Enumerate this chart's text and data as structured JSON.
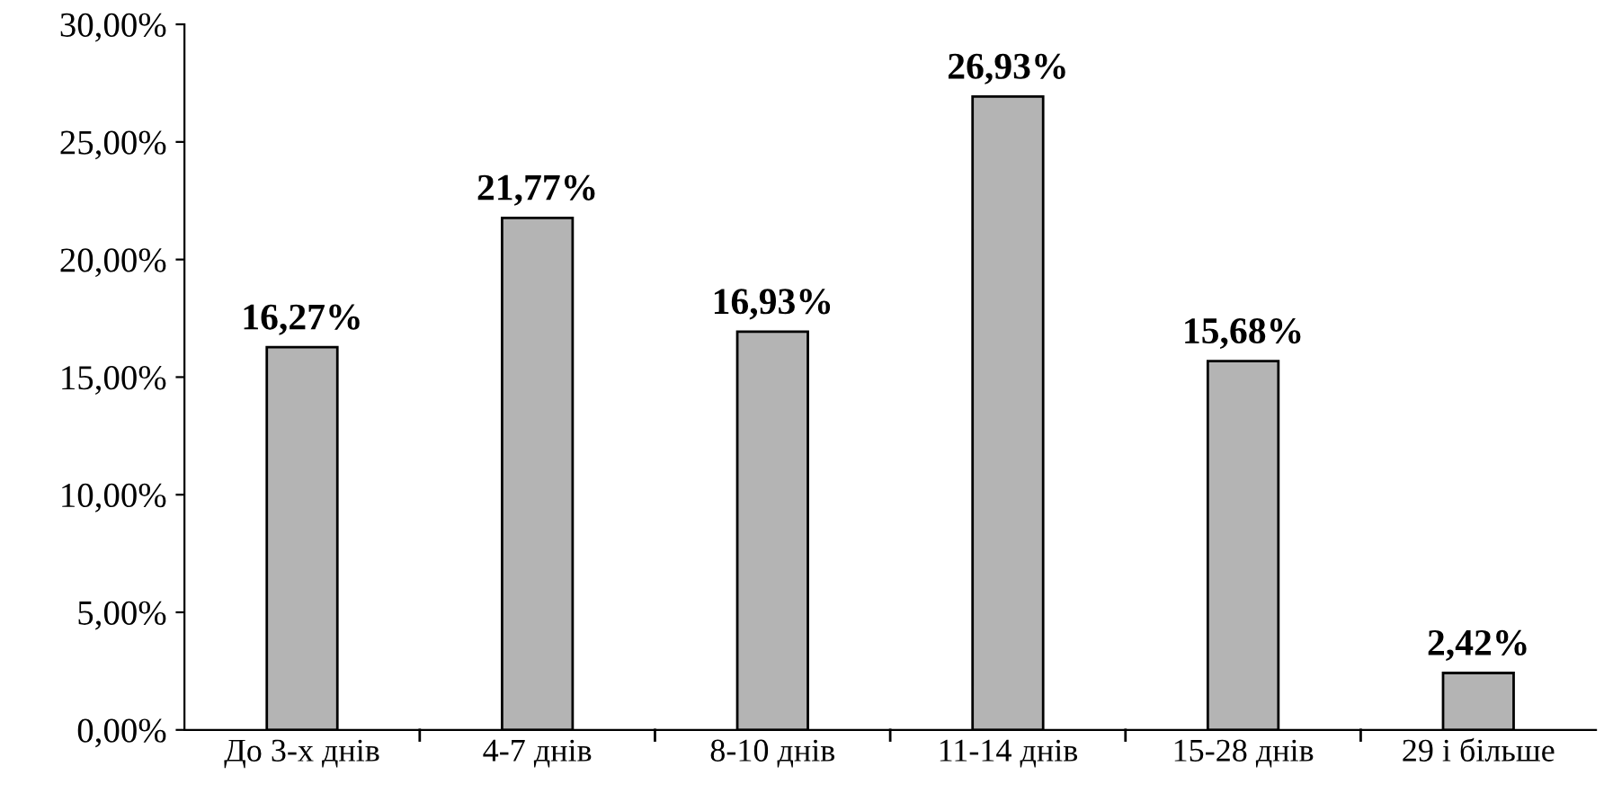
{
  "chart_data": {
    "type": "bar",
    "categories": [
      "До 3-х днів",
      "4-7 днів",
      "8-10 днів",
      "11-14 днів",
      "15-28 днів",
      "29 і більше"
    ],
    "values": [
      16.27,
      21.77,
      16.93,
      26.93,
      15.68,
      2.42
    ],
    "value_labels": [
      "16,27%",
      "21,77%",
      "16,93%",
      "26,93%",
      "15,68%",
      "2,42%"
    ],
    "color": "#b4b4b4",
    "ylim": [
      0,
      30
    ],
    "yticks": [
      {
        "value": 0,
        "label": "0,00%"
      },
      {
        "value": 5,
        "label": "5,00%"
      },
      {
        "value": 10,
        "label": "10,00%"
      },
      {
        "value": 15,
        "label": "15,00%"
      },
      {
        "value": 20,
        "label": "20,00%"
      },
      {
        "value": 25,
        "label": "25,00%"
      },
      {
        "value": 30,
        "label": "30,00%"
      }
    ],
    "grid": false,
    "legend": false
  }
}
